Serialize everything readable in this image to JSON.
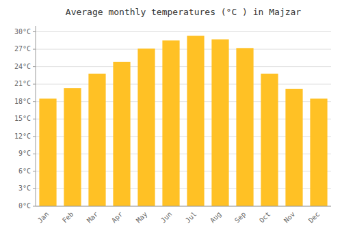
{
  "chart_data": {
    "type": "bar",
    "title": "Average monthly temperatures (°C ) in Majzar",
    "categories": [
      "Jan",
      "Feb",
      "Mar",
      "Apr",
      "May",
      "Jun",
      "Jul",
      "Aug",
      "Sep",
      "Oct",
      "Nov",
      "Dec"
    ],
    "values": [
      18.5,
      20.3,
      22.8,
      24.8,
      27.1,
      28.5,
      29.3,
      28.7,
      27.2,
      22.8,
      20.2,
      18.5
    ],
    "color": "#FFC125",
    "ylim": [
      0,
      31
    ],
    "yticks": [
      {
        "value": 0,
        "label": "0°C"
      },
      {
        "value": 3,
        "label": "3°C"
      },
      {
        "value": 6,
        "label": "6°C"
      },
      {
        "value": 9,
        "label": "9°C"
      },
      {
        "value": 12,
        "label": "12°C"
      },
      {
        "value": 15,
        "label": "15°C"
      },
      {
        "value": 18,
        "label": "18°C"
      },
      {
        "value": 21,
        "label": "21°C"
      },
      {
        "value": 24,
        "label": "24°C"
      },
      {
        "value": 27,
        "label": "27°C"
      },
      {
        "value": 30,
        "label": "30°C"
      }
    ],
    "grid": true
  }
}
